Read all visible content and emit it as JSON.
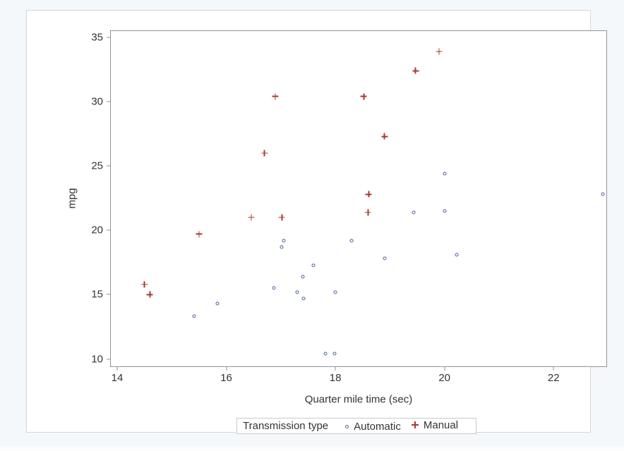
{
  "page": {
    "background": "#f5f8fa",
    "panel_background": "#ffffff"
  },
  "chart_data": {
    "type": "scatter",
    "title": "",
    "xlabel": "Quarter mile time (sec)",
    "ylabel": "mpg",
    "xlim": [
      13.884,
      22.967
    ],
    "ylim": [
      9.426,
      35.492
    ],
    "x_ticks": [
      14,
      16,
      18,
      20,
      22
    ],
    "y_ticks": [
      10,
      15,
      20,
      25,
      30,
      35
    ],
    "grid": false,
    "legend": {
      "title": "Transmission type",
      "position": "bottom-center"
    },
    "series": [
      {
        "name": "Automatic",
        "marker": "circle",
        "color": "#4d60a6",
        "points": [
          [
            17.02,
            18.7
          ],
          [
            20.22,
            18.1
          ],
          [
            15.84,
            14.3
          ],
          [
            20.0,
            24.4
          ],
          [
            22.9,
            22.8
          ],
          [
            18.3,
            19.2
          ],
          [
            18.9,
            17.8
          ],
          [
            17.4,
            16.4
          ],
          [
            17.6,
            17.3
          ],
          [
            18.0,
            15.2
          ],
          [
            17.98,
            10.4
          ],
          [
            17.82,
            10.4
          ],
          [
            17.42,
            14.7
          ],
          [
            19.44,
            21.4
          ],
          [
            20.01,
            21.5
          ],
          [
            16.87,
            15.5
          ],
          [
            17.3,
            15.2
          ],
          [
            15.41,
            13.3
          ],
          [
            17.05,
            19.2
          ]
        ]
      },
      {
        "name": "Manual",
        "marker": "plus",
        "color": "#a83a2e",
        "points": [
          [
            16.46,
            21.0
          ],
          [
            17.02,
            21.0
          ],
          [
            18.61,
            22.8
          ],
          [
            19.47,
            32.4
          ],
          [
            18.52,
            30.4
          ],
          [
            19.9,
            33.9
          ],
          [
            18.9,
            27.3
          ],
          [
            16.7,
            26.0
          ],
          [
            16.9,
            30.4
          ],
          [
            14.5,
            15.8
          ],
          [
            15.5,
            19.7
          ],
          [
            14.6,
            15.0
          ],
          [
            18.6,
            21.4
          ]
        ]
      }
    ]
  }
}
